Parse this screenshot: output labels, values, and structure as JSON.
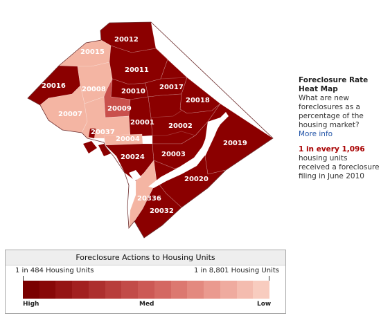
{
  "map": {
    "zips": [
      {
        "id": "20012",
        "label": "20012",
        "level": "high"
      },
      {
        "id": "20015",
        "label": "20015",
        "level": "low"
      },
      {
        "id": "20011",
        "label": "20011",
        "level": "high"
      },
      {
        "id": "20016",
        "label": "20016",
        "level": "high"
      },
      {
        "id": "20008",
        "label": "20008",
        "level": "low"
      },
      {
        "id": "20010",
        "label": "20010",
        "level": "high"
      },
      {
        "id": "20017",
        "label": "20017",
        "level": "high"
      },
      {
        "id": "20018",
        "label": "20018",
        "level": "high"
      },
      {
        "id": "20007",
        "label": "20007",
        "level": "low"
      },
      {
        "id": "20009",
        "label": "20009",
        "level": "mid"
      },
      {
        "id": "20001",
        "label": "20001",
        "level": "high"
      },
      {
        "id": "20002",
        "label": "20002",
        "level": "high"
      },
      {
        "id": "20037",
        "label": "20037",
        "level": "low"
      },
      {
        "id": "20004",
        "label": "20004",
        "level": "low"
      },
      {
        "id": "20019",
        "label": "20019",
        "level": "high"
      },
      {
        "id": "20024",
        "label": "20024",
        "level": "high"
      },
      {
        "id": "20003",
        "label": "20003",
        "level": "high"
      },
      {
        "id": "20020",
        "label": "20020",
        "level": "high"
      },
      {
        "id": "20336",
        "label": "20336",
        "level": "low"
      },
      {
        "id": "20032",
        "label": "20032",
        "level": "high"
      }
    ]
  },
  "colors": {
    "high": "#8b0000",
    "mid": "#c9504c",
    "low": "#f4b5a3",
    "border": "#6a3a3a",
    "water": "#ffffff"
  },
  "info": {
    "title": "Foreclosure Rate Heat Map",
    "question": "What are new foreclosures as a percentage of the housing market?",
    "more_link": "More info",
    "stat_highlight": "1 in every 1,096",
    "stat_text": "housing units received a foreclosure filing in June 2010"
  },
  "legend": {
    "title": "Foreclosure Actions to Housing Units",
    "left_label": "1 in 484 Housing Units",
    "right_label": "1 in 8,801 Housing Units",
    "high_label": "High",
    "med_label": "Med",
    "low_label": "Low",
    "ramp_colors": [
      "#7a0000",
      "#880808",
      "#951414",
      "#a22020",
      "#ad2f2e",
      "#b83d3b",
      "#c24b48",
      "#cc5955",
      "#d46862",
      "#dc7870",
      "#e3897f",
      "#ea9a8f",
      "#efab9f",
      "#f4bcaf",
      "#f8ccbf"
    ]
  }
}
